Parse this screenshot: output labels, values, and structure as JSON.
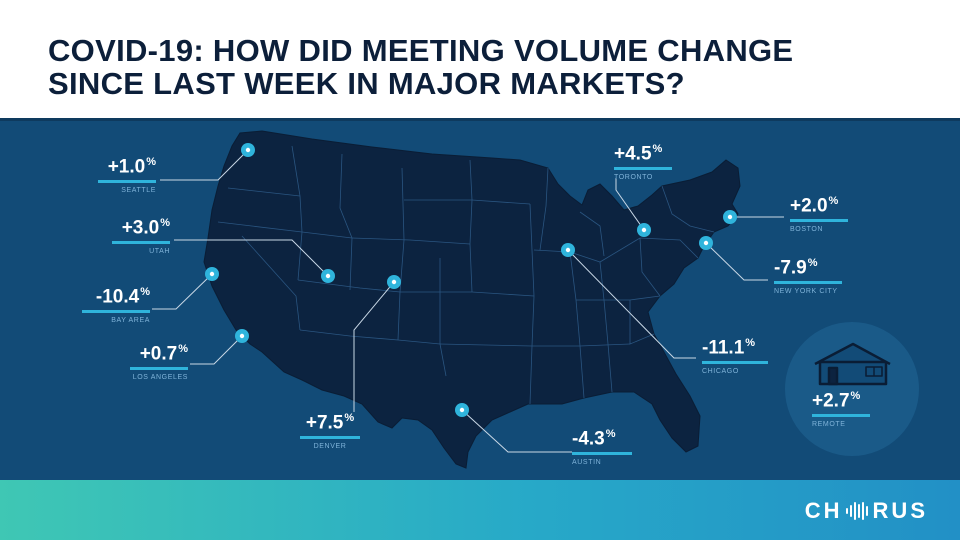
{
  "header": {
    "title_lead": "COVID-19:",
    "title_line1": " HOW DID MEETING VOLUME CHANGE",
    "title_line2": "SINCE LAST WEEK IN MAJOR MARKETS?"
  },
  "markets": [
    {
      "id": "seattle",
      "value": "+1.0",
      "unit": "%",
      "city": "SEATTLE"
    },
    {
      "id": "utah",
      "value": "+3.0",
      "unit": "%",
      "city": "UTAH"
    },
    {
      "id": "bay-area",
      "value": "-10.4",
      "unit": "%",
      "city": "BAY AREA"
    },
    {
      "id": "los-angeles",
      "value": "+0.7",
      "unit": "%",
      "city": "LOS ANGELES"
    },
    {
      "id": "denver",
      "value": "+7.5",
      "unit": "%",
      "city": "DENVER"
    },
    {
      "id": "austin",
      "value": "-4.3",
      "unit": "%",
      "city": "AUSTIN"
    },
    {
      "id": "chicago",
      "value": "-11.1",
      "unit": "%",
      "city": "CHICAGO"
    },
    {
      "id": "toronto",
      "value": "+4.5",
      "unit": "%",
      "city": "TORONTO"
    },
    {
      "id": "boston",
      "value": "+2.0",
      "unit": "%",
      "city": "BOSTON"
    },
    {
      "id": "new-york-city",
      "value": "-7.9",
      "unit": "%",
      "city": "NEW YORK CITY"
    },
    {
      "id": "remote",
      "value": "+2.7",
      "unit": "%",
      "city": "REMOTE"
    }
  ],
  "logo": {
    "left": "CH",
    "right": "RUS"
  },
  "colors": {
    "map_bg": "#124b77",
    "land": "#0c2340",
    "accent": "#2fb4dc",
    "leader": "#c9d8e6"
  },
  "icons": {
    "pin": "map-pin-icon",
    "remote": "house-icon",
    "logo_wave": "sound-wave-icon"
  }
}
